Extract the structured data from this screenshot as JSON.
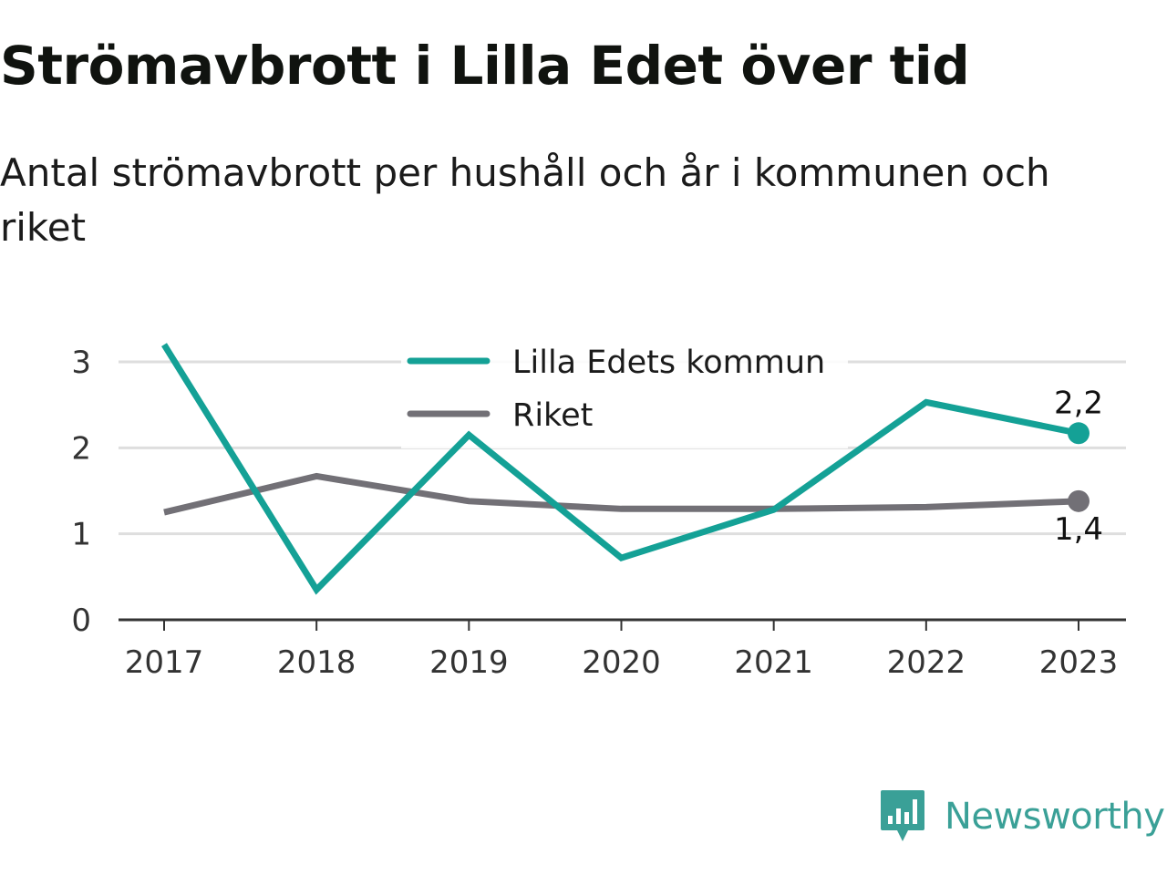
{
  "header": {
    "title": "Strömavbrott i Lilla Edet över tid",
    "subtitle": "Antal strömavbrott per hushåll och år i kommunen och riket"
  },
  "brand": {
    "name": "Newsworthy"
  },
  "colors": {
    "series_primary": "#14a196",
    "series_secondary": "#727076",
    "grid": "#dedede",
    "axis": "#333333",
    "brand": "#3aa097"
  },
  "chart_data": {
    "type": "line",
    "x": [
      "2017",
      "2018",
      "2019",
      "2020",
      "2021",
      "2022",
      "2023"
    ],
    "series": [
      {
        "name": "Lilla Edets kommun",
        "color": "#14a196",
        "values": [
          3.2,
          0.35,
          2.15,
          0.72,
          1.28,
          2.53,
          2.17
        ],
        "end_label": "2,2"
      },
      {
        "name": "Riket",
        "color": "#727076",
        "values": [
          1.25,
          1.67,
          1.38,
          1.29,
          1.29,
          1.31,
          1.38
        ],
        "end_label": "1,4"
      }
    ],
    "y_ticks": [
      "0",
      "1",
      "2",
      "3"
    ],
    "ylim": [
      0,
      3
    ],
    "grid": true,
    "legend_position": "top-center"
  }
}
